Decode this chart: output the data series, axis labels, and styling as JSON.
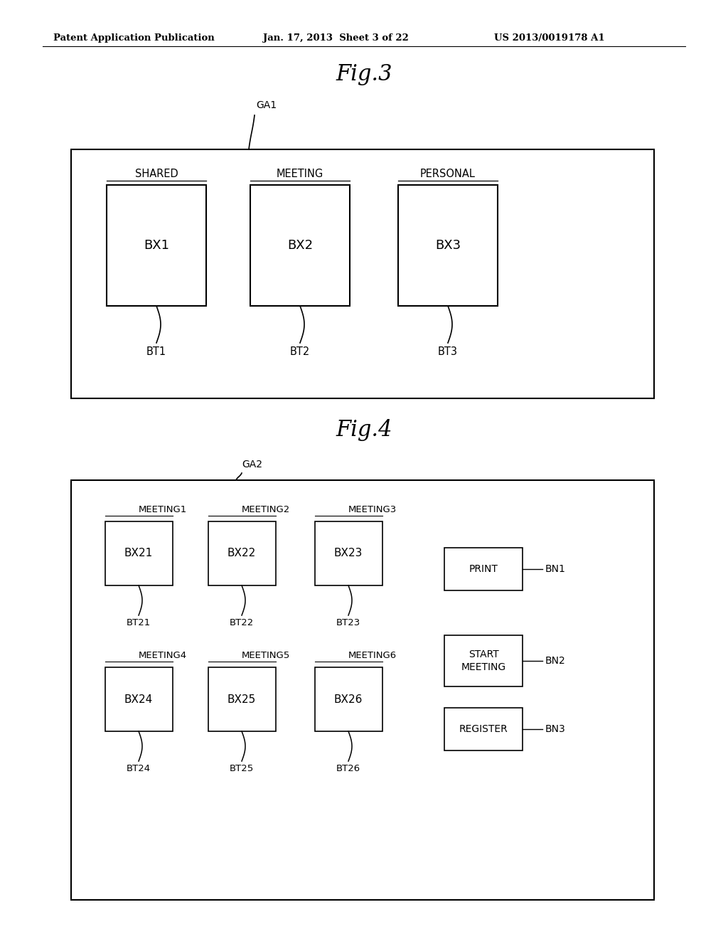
{
  "bg_color": "#ffffff",
  "text_color": "#000000",
  "header_left": "Patent Application Publication",
  "header_mid": "Jan. 17, 2013  Sheet 3 of 22",
  "header_right": "US 2013/0019178 A1",
  "fig3_title": "Fig.3",
  "fig4_title": "Fig.4",
  "fig3": {
    "GA1_label": "GA1",
    "items": [
      {
        "label": "SHARED",
        "box_label": "BX1",
        "bt_label": "BT1"
      },
      {
        "label": "MEETING",
        "box_label": "BX2",
        "bt_label": "BT2"
      },
      {
        "label": "PERSONAL",
        "box_label": "BX3",
        "bt_label": "BT3"
      }
    ]
  },
  "fig4": {
    "GA2_label": "GA2",
    "row1_items": [
      {
        "label": "MEETING1",
        "box_label": "BX21",
        "bt_label": "BT21"
      },
      {
        "label": "MEETING2",
        "box_label": "BX22",
        "bt_label": "BT22"
      },
      {
        "label": "MEETING3",
        "box_label": "BX23",
        "bt_label": "BT23"
      }
    ],
    "row2_items": [
      {
        "label": "MEETING4",
        "box_label": "BX24",
        "bt_label": "BT24"
      },
      {
        "label": "MEETING5",
        "box_label": "BX25",
        "bt_label": "BT25"
      },
      {
        "label": "MEETING6",
        "box_label": "BX26",
        "bt_label": "BT26"
      }
    ],
    "buttons": [
      {
        "label": "PRINT",
        "bn_label": "BN1"
      },
      {
        "label": "START\nMEETING",
        "bn_label": "BN2"
      },
      {
        "label": "REGISTER",
        "bn_label": "BN3"
      }
    ]
  }
}
